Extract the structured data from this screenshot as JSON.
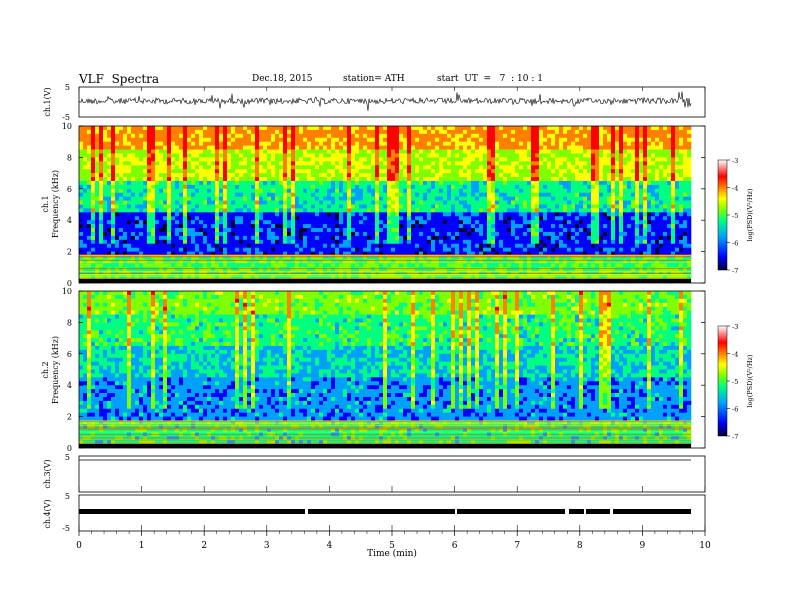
{
  "header": {
    "title": "VLF  Spectra",
    "date": "Dec.18, 2015",
    "station": "station= ATH",
    "start": "start  UT  =   7  : 10 : 1"
  },
  "chart_data": [
    {
      "type": "line",
      "panel": "ch1-waveform",
      "ylabel": "ch.1(V)",
      "ylim": [
        -5,
        5
      ],
      "yticks": [
        "5",
        "-5"
      ],
      "description_values": {
        "mean": 0.0,
        "amplitude_approx": 1.0
      }
    },
    {
      "type": "heatmap",
      "panel": "ch1-spectrogram",
      "ylabel": "ch.1\nFrequency (kHz)",
      "ylabel_line1": "ch.1",
      "ylabel_line2": "Frequency  (kHz)",
      "ylim": [
        0,
        10
      ],
      "yticks": [
        "0",
        "2",
        "4",
        "6",
        "8",
        "10"
      ],
      "colorbar": {
        "label": "log(PSD)(V²/Hz)",
        "range": [
          -7,
          -3
        ],
        "ticks": [
          "-3",
          "-4",
          "-5",
          "-6",
          "-7"
        ]
      }
    },
    {
      "type": "heatmap",
      "panel": "ch2-spectrogram",
      "ylabel_line1": "ch.2",
      "ylabel_line2": "Frequency  (kHz)",
      "ylim": [
        0,
        10
      ],
      "yticks": [
        "0",
        "2",
        "4",
        "6",
        "8",
        "10"
      ],
      "colorbar": {
        "label": "log(PSD)(V²/Hz)",
        "range": [
          -7,
          -3
        ],
        "ticks": [
          "-3",
          "-4",
          "-5",
          "-6",
          "-7"
        ]
      }
    },
    {
      "type": "line",
      "panel": "ch3-waveform",
      "ylabel": "ch.3(V)",
      "ylim": [
        -5,
        5
      ],
      "yticks": [
        "5"
      ]
    },
    {
      "type": "line",
      "panel": "ch4-waveform",
      "ylabel": "ch.4(V)",
      "ylim": [
        -5,
        5
      ],
      "yticks": [
        "5",
        "-5"
      ],
      "level": -1.2
    }
  ],
  "xaxis": {
    "label": "Time  (min)",
    "xlim": [
      0,
      10
    ],
    "ticks": [
      "0",
      "1",
      "2",
      "3",
      "4",
      "5",
      "6",
      "7",
      "8",
      "9",
      "10"
    ],
    "data_end": 9.8
  },
  "colors": {
    "scale": [
      "#000033",
      "#0000ff",
      "#00a0ff",
      "#00ff80",
      "#80ff00",
      "#ffff00",
      "#ff8000",
      "#ff0000",
      "#ffffff"
    ]
  }
}
